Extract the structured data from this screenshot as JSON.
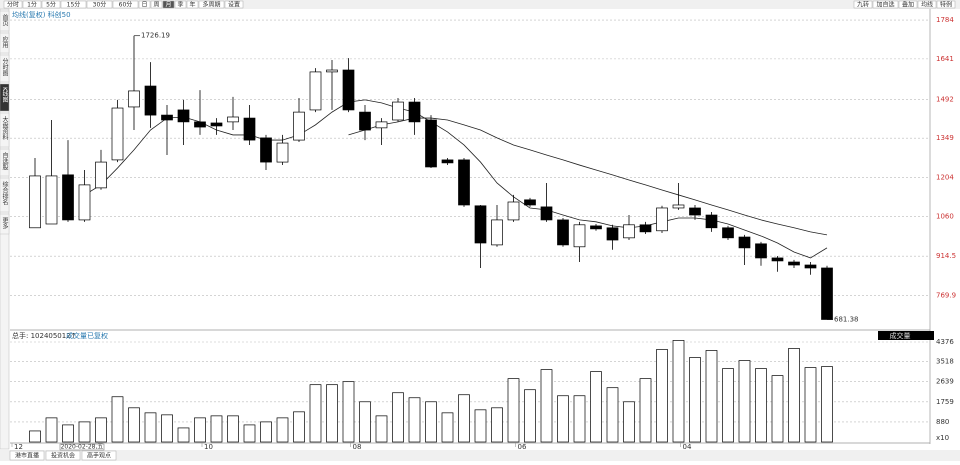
{
  "ui": {
    "toolbar": [
      "分时",
      "1分",
      "5分",
      "15分",
      "30分",
      "60分",
      "日",
      "周",
      "月",
      "季",
      "年",
      "多周期",
      "设置"
    ],
    "toolbar_right": [
      "九转",
      "加自选",
      "叠加",
      "均线",
      "特例"
    ],
    "sidebar": [
      "首页",
      "应用",
      "分时图",
      "K线图",
      "大盘资料",
      "自选股",
      "综合排名",
      "更多"
    ],
    "legend": "均线(复权)  科创50",
    "volume_header": "总手: 102405012↑",
    "volume_note": "成交量已复权",
    "volume_menu": "成交量",
    "volume_unit": "x10",
    "bottom_tabs": [
      "港市直播",
      "投资机会",
      "高手观点"
    ]
  },
  "chart_data": {
    "type": "candlestick",
    "categories": [
      "12",
      null,
      null,
      null,
      null,
      null,
      null,
      null,
      null,
      null,
      "10",
      null,
      null,
      null,
      null,
      null,
      null,
      null,
      null,
      "08",
      null,
      null,
      null,
      null,
      null,
      null,
      null,
      null,
      null,
      "06",
      null,
      null,
      null,
      null,
      null,
      null,
      null,
      null,
      null,
      "04",
      null,
      null,
      null,
      null,
      null,
      null,
      null,
      null,
      null
    ],
    "cursor_label": "2020-02-28,五",
    "open": [
      1019,
      1033,
      1214,
      1048,
      1166,
      1269,
      1464,
      1541,
      1434,
      1453,
      1409,
      1405,
      1409,
      1423,
      1350,
      1261,
      1342,
      1453,
      1593,
      1600,
      1445,
      1387,
      1416,
      1482,
      1416,
      1269,
      1269,
      1100,
      956,
      1048,
      1122,
      1096,
      1048,
      949,
      1026,
      1019,
      982,
      1030,
      1008,
      1092,
      1092,
      1066,
      1019,
      985,
      960,
      908,
      893,
      882,
      871
    ],
    "close": [
      1210,
      1210,
      1048,
      1177,
      1261,
      1460,
      1523,
      1434,
      1416,
      1409,
      1390,
      1394,
      1427,
      1342,
      1261,
      1331,
      1445,
      1593,
      1600,
      1453,
      1379,
      1409,
      1482,
      1409,
      1243,
      1258,
      1103,
      963,
      1048,
      1114,
      1103,
      1048,
      956,
      1030,
      1015,
      974,
      1030,
      1004,
      1092,
      1103,
      1066,
      1019,
      982,
      945,
      908,
      897,
      882,
      871,
      681.38
    ],
    "high": [
      1276,
      1416,
      1342,
      1232,
      1306,
      1490,
      1726.19,
      1629,
      1471,
      1490,
      1526,
      1423,
      1501,
      1471,
      1361,
      1361,
      1497,
      1607,
      1637,
      1644,
      1471,
      1423,
      1497,
      1497,
      1434,
      1276,
      1276,
      1103,
      1103,
      1140,
      1129,
      1184,
      1055,
      1041,
      1033,
      1030,
      1066,
      1041,
      1100,
      1184,
      1103,
      1077,
      1026,
      993,
      967,
      915,
      901,
      893,
      879
    ],
    "low": [
      1019,
      1033,
      1041,
      1041,
      1159,
      1261,
      1379,
      1387,
      1287,
      1324,
      1361,
      1361,
      1379,
      1324,
      1232,
      1250,
      1335,
      1445,
      1453,
      1445,
      1342,
      1324,
      1409,
      1361,
      1239,
      1250,
      1096,
      871,
      949,
      1041,
      1096,
      1041,
      949,
      893,
      1008,
      938,
      974,
      996,
      1000,
      1085,
      1048,
      1004,
      974,
      882,
      879,
      857,
      871,
      846,
      681.38
    ],
    "high_label": "1726.19",
    "low_label": "681.38",
    "up_color": "#ffffff",
    "down_color": "#000000",
    "ma": [
      {
        "color": "#222222",
        "values": [
          null,
          null,
          null,
          1140,
          1177,
          1239,
          1306,
          1379,
          1423,
          1427,
          1409,
          1379,
          1361,
          1361,
          1342,
          1342,
          1361,
          1398,
          1445,
          1482,
          1490,
          1479,
          1460,
          1445,
          1409,
          1372,
          1324,
          1261,
          1184,
          1133,
          1092,
          1085,
          1066,
          1048,
          1041,
          1026,
          1019,
          1026,
          1041,
          1055,
          1055,
          1048,
          1033,
          1011,
          989,
          963,
          930,
          908,
          945
        ]
      },
      {
        "color": "#222222",
        "values": [
          null,
          null,
          null,
          null,
          null,
          null,
          null,
          null,
          null,
          null,
          null,
          null,
          null,
          null,
          null,
          null,
          null,
          null,
          null,
          1361,
          1379,
          1398,
          1409,
          1423,
          1423,
          1416,
          1398,
          1379,
          1350,
          1324,
          1306,
          1287,
          1269,
          1250,
          1232,
          1214,
          1195,
          1177,
          1158,
          1140,
          1122,
          1103,
          1085,
          1066,
          1048,
          1033,
          1019,
          1004,
          993
        ]
      }
    ],
    "ylim": [
      650,
      1821
    ],
    "yticks": [
      1784,
      1641,
      1492,
      1349,
      1204,
      1060,
      914.5,
      769.9
    ],
    "volume": [
      484,
      1056,
      748,
      880,
      1056,
      1980,
      1496,
      1276,
      1188,
      616,
      1056,
      1144,
      1144,
      748,
      880,
      1056,
      1320,
      2508,
      2508,
      2640,
      1760,
      1144,
      2156,
      1936,
      1760,
      1276,
      2068,
      1408,
      1496,
      2772,
      2288,
      3168,
      2024,
      2024,
      3080,
      2376,
      1760,
      2772,
      4048,
      4444,
      3696,
      4004,
      3212,
      3564,
      3212,
      2904,
      4092,
      3256,
      3300
    ],
    "volume_ylim": [
      0,
      4770
    ],
    "volume_yticks": [
      4376,
      3518,
      2639,
      1759,
      880
    ],
    "grid": true
  }
}
